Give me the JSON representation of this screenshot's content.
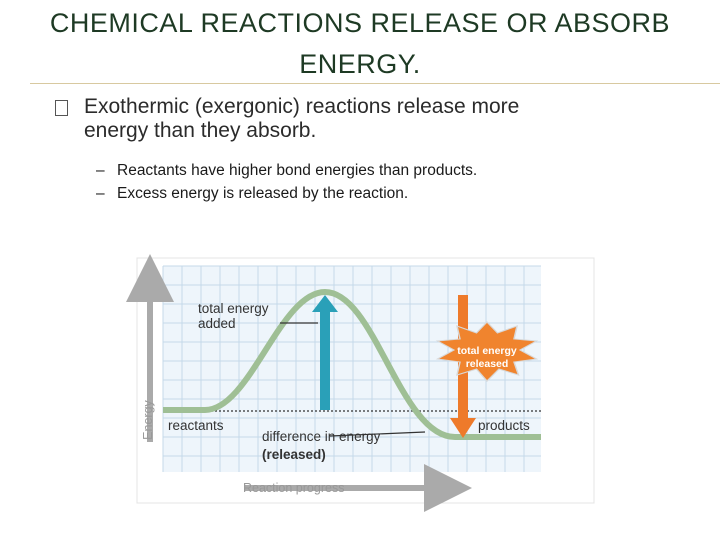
{
  "header": {
    "title": [
      "CHEMICAL REACTIONS RELEASE OR ABSORB",
      "ENERGY."
    ]
  },
  "bullets": [
    {
      "lines": [
        "Exothermic (exergonic) reactions release more",
        "energy than they absorb."
      ],
      "sub_bullets": [
        "Reactants have higher bond energies than products.",
        "Excess energy is released by the reaction."
      ]
    }
  ],
  "diagram": {
    "total_energy_added": [
      "total energy",
      "added"
    ],
    "total_energy_released": [
      "total energy",
      "released"
    ],
    "reactants": "reactants",
    "products": "products",
    "difference_in_energy": [
      "difference in energy",
      "(released)"
    ],
    "y_axis_label": "Energy",
    "x_axis_label": "Reaction progress"
  }
}
